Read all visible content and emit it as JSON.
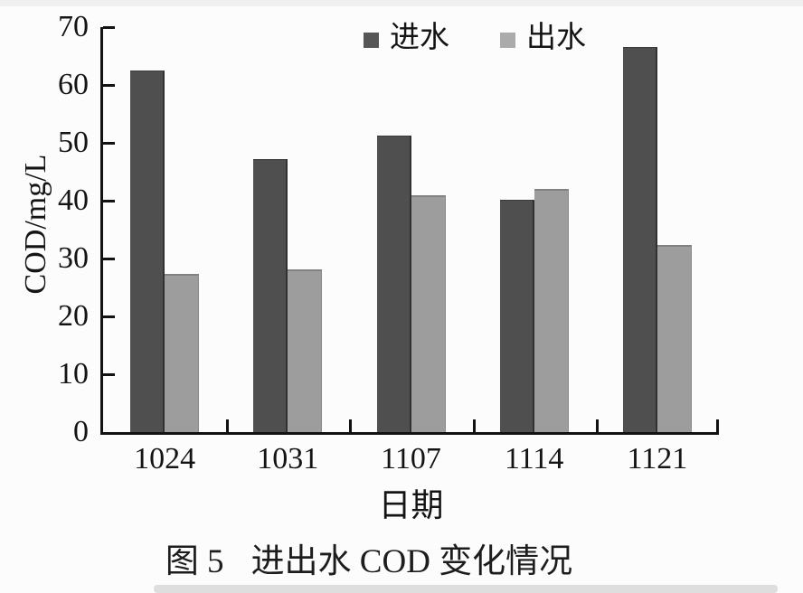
{
  "figure": {
    "caption_prefix": "图 5",
    "caption_text": "进出水 COD 变化情况"
  },
  "chart_data": {
    "type": "bar",
    "title": "",
    "xlabel": "日期",
    "ylabel": "COD/mg/L",
    "categories": [
      "1024",
      "1031",
      "1107",
      "1114",
      "1121"
    ],
    "series": [
      {
        "name": "进水",
        "color": "#4f4f4f",
        "legend_color": "#565656",
        "values": [
          62.5,
          47.2,
          51.2,
          40.2,
          66.5
        ]
      },
      {
        "name": "出水",
        "color": "#9d9d9d",
        "legend_color": "#ababab",
        "values": [
          27.3,
          28.2,
          41.0,
          42.0,
          32.3
        ]
      }
    ],
    "ylim": [
      0,
      70
    ],
    "ytick_step": 10,
    "ytick_labels": [
      "0",
      "10",
      "20",
      "30",
      "40",
      "50",
      "60",
      "70"
    ],
    "legend_position": "top-center",
    "grid": false,
    "axis_color": "#121212"
  }
}
